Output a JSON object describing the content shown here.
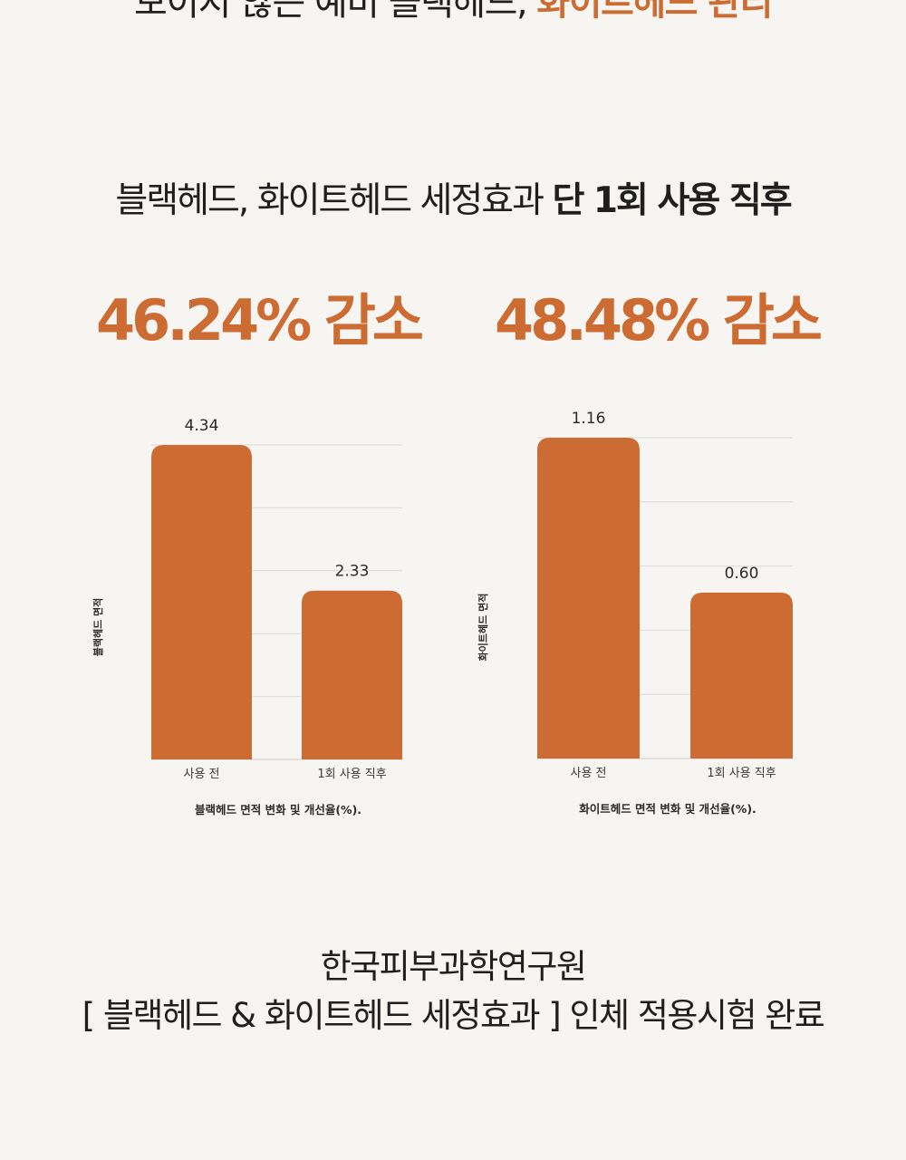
{
  "top_line": {
    "text": "보이지 않는 예비 블랙헤드,",
    "accent": "화이트헤드 관리"
  },
  "headline": {
    "normal": "블랙헤드, 화이트헤드 세정효과",
    "bold": "단 1회 사용 직후"
  },
  "stats": {
    "left": "46.24% 감소",
    "right": "48.48% 감소"
  },
  "colors": {
    "accent": "#cc6c33",
    "bar": "#cc6c33",
    "background": "#f7f5f1",
    "grid": "#dcdad6"
  },
  "chart_data": [
    {
      "type": "bar",
      "categories": [
        "사용 전",
        "1회 사용 직후"
      ],
      "values": [
        4.34,
        2.33
      ],
      "value_labels": [
        "4.34",
        "2.33"
      ],
      "ylabel": "블랙헤드 면적",
      "caption": "블랙헤드 면적 변화 및 개선율(%).",
      "ylim": [
        0,
        4.34
      ],
      "grid": true
    },
    {
      "type": "bar",
      "categories": [
        "사용 전",
        "1회 사용 직후"
      ],
      "values": [
        1.16,
        0.6
      ],
      "value_labels": [
        "1.16",
        "0.60"
      ],
      "ylabel": "화이트헤드 면적",
      "caption": "화이트헤드 면적 변화 및 개선율(%).",
      "ylim": [
        0,
        1.16
      ],
      "grid": true
    }
  ],
  "bottom": {
    "line1": "한국피부과학연구원",
    "line2": "[ 블랙헤드 & 화이트헤드 세정효과 ] 인체 적용시험 완료"
  }
}
